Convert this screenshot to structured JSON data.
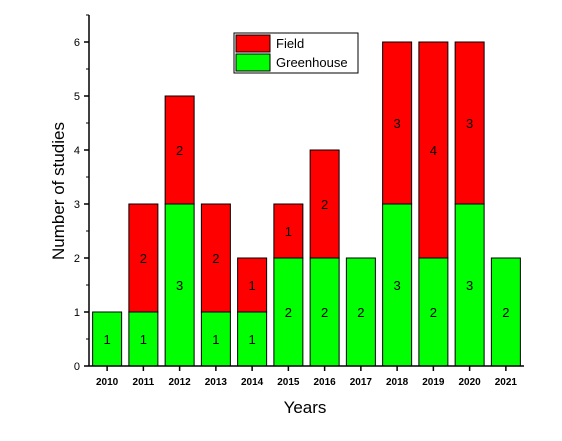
{
  "chart_data": {
    "type": "bar",
    "stacked": true,
    "title": "",
    "xlabel": "Years",
    "ylabel": "Number of studies",
    "categories": [
      "2010",
      "2011",
      "2012",
      "2013",
      "2014",
      "2015",
      "2016",
      "2017",
      "2018",
      "2019",
      "2020",
      "2021"
    ],
    "series": [
      {
        "name": "Greenhouse",
        "color": "#00ff00",
        "values": [
          1,
          1,
          3,
          1,
          1,
          2,
          2,
          2,
          3,
          2,
          3,
          2
        ],
        "labels": [
          "1",
          "1",
          "3",
          "1",
          "1",
          "2",
          "2",
          "2",
          "3",
          "2",
          "3",
          "2"
        ]
      },
      {
        "name": "Field",
        "color": "#ff0000",
        "values": [
          0,
          2,
          2,
          2,
          1,
          1,
          2,
          0,
          3,
          4,
          3,
          0
        ],
        "labels": [
          "",
          "2",
          "2",
          "2",
          "1",
          "1",
          "2",
          "",
          "3",
          "4",
          "3",
          ""
        ]
      }
    ],
    "ylim": [
      0,
      6.5
    ],
    "yticks": [
      "0",
      "1",
      "2",
      "3",
      "4",
      "5",
      "6"
    ],
    "grid": false,
    "legend": {
      "placement": "top-center",
      "entries": [
        "Field",
        "Greenhouse"
      ]
    }
  }
}
